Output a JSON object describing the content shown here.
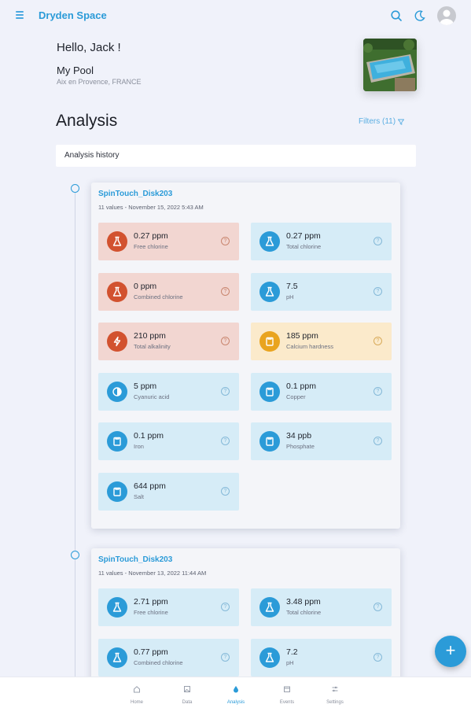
{
  "app": {
    "title": "Dryden Space"
  },
  "greeting": "Hello, Jack !",
  "pool": {
    "name": "My Pool",
    "location": "Aix en Provence, FRANCE"
  },
  "page": {
    "title": "Analysis",
    "filters_label": "Filters (11)",
    "history_label": "Analysis history"
  },
  "analyses": [
    {
      "title": "SpinTouch_Disk203",
      "subtitle": "11 values - November 15, 2022 5:43 AM",
      "tiles": [
        {
          "value": "0.27 ppm",
          "label": "Free chlorine",
          "status": "red",
          "icon": "flask-icon"
        },
        {
          "value": "0.27 ppm",
          "label": "Total chlorine",
          "status": "blue",
          "icon": "flask-icon"
        },
        {
          "value": "0 ppm",
          "label": "Combined chlorine",
          "status": "red",
          "icon": "flask-icon"
        },
        {
          "value": "7.5",
          "label": "pH",
          "status": "blue",
          "icon": "flask-icon"
        },
        {
          "value": "210 ppm",
          "label": "Total alkalinity",
          "status": "red",
          "icon": "bolt-icon"
        },
        {
          "value": "185 ppm",
          "label": "Calcium hardness",
          "status": "yellow",
          "icon": "square-icon"
        },
        {
          "value": "5 ppm",
          "label": "Cyanuric acid",
          "status": "blue",
          "icon": "half-circle-icon"
        },
        {
          "value": "0.1 ppm",
          "label": "Copper",
          "status": "blue",
          "icon": "square-icon"
        },
        {
          "value": "0.1 ppm",
          "label": "Iron",
          "status": "blue",
          "icon": "square-icon"
        },
        {
          "value": "34 ppb",
          "label": "Phosphate",
          "status": "blue",
          "icon": "square-icon"
        },
        {
          "value": "644 ppm",
          "label": "Salt",
          "status": "blue",
          "icon": "square-icon"
        }
      ]
    },
    {
      "title": "SpinTouch_Disk203",
      "subtitle": "11 values - November 13, 2022 11:44 AM",
      "tiles": [
        {
          "value": "2.71 ppm",
          "label": "Free chlorine",
          "status": "blue",
          "icon": "flask-icon"
        },
        {
          "value": "3.48 ppm",
          "label": "Total chlorine",
          "status": "blue",
          "icon": "flask-icon"
        },
        {
          "value": "0.77 ppm",
          "label": "Combined chlorine",
          "status": "blue",
          "icon": "flask-icon"
        },
        {
          "value": "7.2",
          "label": "pH",
          "status": "blue",
          "icon": "flask-icon"
        }
      ]
    }
  ],
  "help_glyph": "?",
  "fab_glyph": "+",
  "nav": [
    {
      "label": "Home",
      "icon": "home-icon",
      "active": false
    },
    {
      "label": "Data",
      "icon": "image-icon",
      "active": false
    },
    {
      "label": "Analysis",
      "icon": "drop-icon",
      "active": true
    },
    {
      "label": "Events",
      "icon": "calendar-icon",
      "active": false
    },
    {
      "label": "Settings",
      "icon": "sliders-icon",
      "active": false
    }
  ],
  "colors": {
    "accent": "#2b9bd8",
    "alert": "#d2522f",
    "warning": "#e9a41f",
    "alert_bg": "#f2d6d1",
    "ok_bg": "#d6ecf7",
    "warning_bg": "#fbeacb"
  }
}
